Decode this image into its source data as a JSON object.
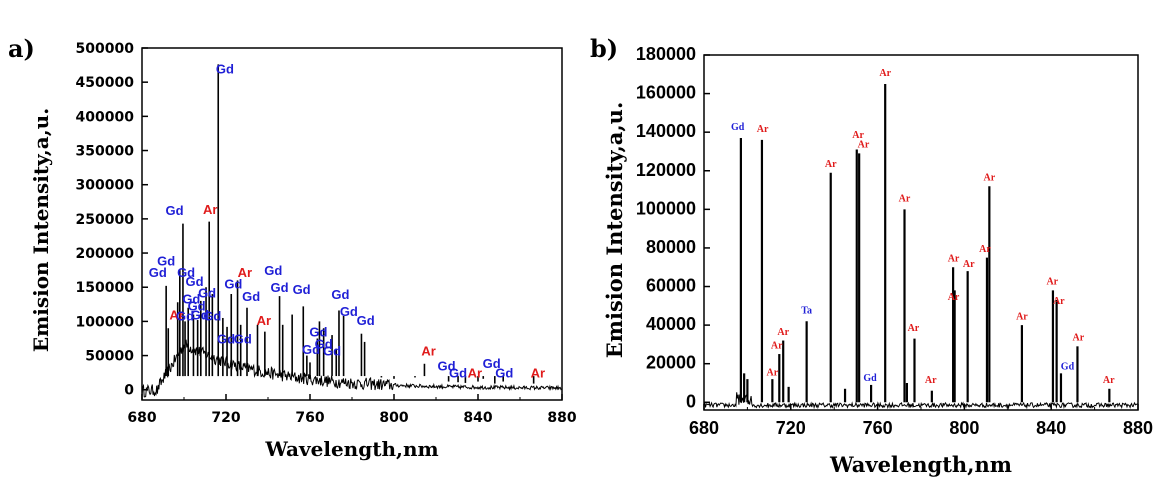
{
  "colors": {
    "gd": "#1f1fd6",
    "ar": "#e01b1b",
    "ta": "#1f1fd6",
    "trace": "#000000"
  },
  "chart_data": [
    {
      "panel": "a)",
      "type": "line",
      "xlabel": "Wavelength,nm",
      "ylabel": "Emision Intensity,a,u.",
      "xlim": [
        680,
        880
      ],
      "ylim": [
        -15000,
        500000
      ],
      "xticks": [
        680,
        720,
        760,
        800,
        840,
        880
      ],
      "yticks": [
        0,
        50000,
        100000,
        150000,
        200000,
        250000,
        300000,
        350000,
        400000,
        450000,
        500000
      ],
      "legend": "none",
      "grid": false,
      "series": [
        {
          "values": [
            {
              "x": 691.5,
              "y": 152000
            },
            {
              "x": 692.5,
              "y": 90000
            },
            {
              "x": 697.0,
              "y": 128000
            },
            {
              "x": 698.0,
              "y": 175000
            },
            {
              "x": 699.5,
              "y": 243000
            },
            {
              "x": 700.5,
              "y": 100000
            },
            {
              "x": 702.0,
              "y": 120000
            },
            {
              "x": 704.5,
              "y": 110000
            },
            {
              "x": 706.5,
              "y": 102000
            },
            {
              "x": 708.0,
              "y": 130000
            },
            {
              "x": 710.5,
              "y": 150000
            },
            {
              "x": 712.0,
              "y": 246000
            },
            {
              "x": 713.5,
              "y": 140000
            },
            {
              "x": 716.3,
              "y": 476000
            },
            {
              "x": 718.5,
              "y": 105000
            },
            {
              "x": 720.5,
              "y": 92000
            },
            {
              "x": 722.5,
              "y": 140000
            },
            {
              "x": 725.5,
              "y": 160000
            },
            {
              "x": 727.0,
              "y": 95000
            },
            {
              "x": 730.0,
              "y": 120000
            },
            {
              "x": 735.0,
              "y": 95000
            },
            {
              "x": 738.5,
              "y": 85000
            },
            {
              "x": 745.5,
              "y": 137000
            },
            {
              "x": 747.0,
              "y": 95000
            },
            {
              "x": 751.5,
              "y": 110000
            },
            {
              "x": 756.8,
              "y": 122000
            },
            {
              "x": 758.5,
              "y": 50000
            },
            {
              "x": 760.0,
              "y": 40000
            },
            {
              "x": 763.5,
              "y": 75000
            },
            {
              "x": 764.5,
              "y": 100000
            },
            {
              "x": 766.5,
              "y": 90000
            },
            {
              "x": 770.5,
              "y": 80000
            },
            {
              "x": 772.5,
              "y": 60000
            },
            {
              "x": 773.8,
              "y": 116000
            },
            {
              "x": 776.0,
              "y": 108000
            },
            {
              "x": 784.5,
              "y": 82000
            },
            {
              "x": 786.0,
              "y": 70000
            },
            {
              "x": 794.0,
              "y": 18000
            },
            {
              "x": 800.0,
              "y": 16000
            },
            {
              "x": 810.0,
              "y": 18000
            },
            {
              "x": 814.5,
              "y": 38000
            },
            {
              "x": 822.0,
              "y": 20000
            },
            {
              "x": 826.0,
              "y": 12000
            },
            {
              "x": 830.5,
              "y": 11000
            },
            {
              "x": 834.0,
              "y": 10000
            },
            {
              "x": 840.0,
              "y": 12000
            },
            {
              "x": 842.5,
              "y": 16000
            },
            {
              "x": 848.0,
              "y": 9000
            },
            {
              "x": 852.0,
              "y": 12000
            },
            {
              "x": 866.5,
              "y": 9000
            }
          ]
        }
      ],
      "annotations": [
        {
          "text": "Gd",
          "el": "gd",
          "x": 687.5,
          "y": 165000
        },
        {
          "text": "Gd",
          "el": "gd",
          "x": 691.5,
          "y": 182000
        },
        {
          "text": "Ar",
          "el": "ar",
          "x": 696.5,
          "y": 103000
        },
        {
          "text": "Gd",
          "el": "gd",
          "x": 695.5,
          "y": 256000
        },
        {
          "text": "Gd",
          "el": "gd",
          "x": 701.0,
          "y": 165000
        },
        {
          "text": "Gd",
          "el": "gd",
          "x": 705.0,
          "y": 152000
        },
        {
          "text": "Gd",
          "el": "gd",
          "x": 703.5,
          "y": 126000
        },
        {
          "text": "Gd",
          "el": "gd",
          "x": 700.5,
          "y": 101000
        },
        {
          "text": "Gd",
          "el": "gd",
          "x": 706.0,
          "y": 116000
        },
        {
          "text": "Gd",
          "el": "gd",
          "x": 707.5,
          "y": 103000
        },
        {
          "text": "Gd",
          "el": "gd",
          "x": 711.0,
          "y": 135000
        },
        {
          "text": "Gd",
          "el": "gd",
          "x": 713.5,
          "y": 101000
        },
        {
          "text": "Ar",
          "el": "ar",
          "x": 712.5,
          "y": 257000
        },
        {
          "text": "Gd",
          "el": "gd",
          "x": 719.5,
          "y": 463000
        },
        {
          "text": "Gd",
          "el": "gd",
          "x": 720.0,
          "y": 68000
        },
        {
          "text": "Gd",
          "el": "gd",
          "x": 723.5,
          "y": 148000
        },
        {
          "text": "Ar",
          "el": "ar",
          "x": 729.0,
          "y": 165000
        },
        {
          "text": "Gd",
          "el": "gd",
          "x": 728.0,
          "y": 68000
        },
        {
          "text": "Gd",
          "el": "gd",
          "x": 732.0,
          "y": 130000
        },
        {
          "text": "Ar",
          "el": "ar",
          "x": 738.0,
          "y": 95000
        },
        {
          "text": "Gd",
          "el": "gd",
          "x": 742.5,
          "y": 168000
        },
        {
          "text": "Gd",
          "el": "gd",
          "x": 745.5,
          "y": 143000
        },
        {
          "text": "Gd",
          "el": "gd",
          "x": 756.0,
          "y": 140000
        },
        {
          "text": "Gd",
          "el": "gd",
          "x": 764.0,
          "y": 78000
        },
        {
          "text": "Gd",
          "el": "gd",
          "x": 760.5,
          "y": 52000
        },
        {
          "text": "Gd",
          "el": "gd",
          "x": 766.5,
          "y": 60000
        },
        {
          "text": "Gd",
          "el": "gd",
          "x": 770.5,
          "y": 50000
        },
        {
          "text": "Gd",
          "el": "gd",
          "x": 774.5,
          "y": 133000
        },
        {
          "text": "Gd",
          "el": "gd",
          "x": 778.5,
          "y": 108000
        },
        {
          "text": "Gd",
          "el": "gd",
          "x": 786.5,
          "y": 95000
        },
        {
          "text": "Ar",
          "el": "ar",
          "x": 816.5,
          "y": 50000
        },
        {
          "text": "Gd",
          "el": "gd",
          "x": 825.0,
          "y": 28000
        },
        {
          "text": "Gd",
          "el": "gd",
          "x": 830.5,
          "y": 18000
        },
        {
          "text": "Ar",
          "el": "ar",
          "x": 838.5,
          "y": 18000
        },
        {
          "text": "Gd",
          "el": "gd",
          "x": 846.5,
          "y": 32000
        },
        {
          "text": "Gd",
          "el": "gd",
          "x": 852.5,
          "y": 18000
        },
        {
          "text": "Ar",
          "el": "ar",
          "x": 868.5,
          "y": 18000
        }
      ]
    },
    {
      "panel": "b)",
      "type": "line",
      "xlabel": "Wavelength,nm",
      "ylabel": "Emision Intensity,a,u.",
      "xlim": [
        680,
        880
      ],
      "ylim": [
        -4000,
        180000
      ],
      "xticks": [
        680,
        720,
        760,
        800,
        840,
        880
      ],
      "yticks": [
        0,
        20000,
        40000,
        60000,
        80000,
        100000,
        120000,
        140000,
        160000,
        180000
      ],
      "legend": "none",
      "grid": false,
      "series": [
        {
          "values": [
            {
              "x": 697.0,
              "y": 137000
            },
            {
              "x": 698.5,
              "y": 15000
            },
            {
              "x": 700.0,
              "y": 12000
            },
            {
              "x": 706.7,
              "y": 136000
            },
            {
              "x": 711.5,
              "y": 12000
            },
            {
              "x": 714.7,
              "y": 25000
            },
            {
              "x": 716.5,
              "y": 32000
            },
            {
              "x": 719.0,
              "y": 8000
            },
            {
              "x": 727.3,
              "y": 42000
            },
            {
              "x": 738.4,
              "y": 119000
            },
            {
              "x": 745.0,
              "y": 7000
            },
            {
              "x": 750.4,
              "y": 131000
            },
            {
              "x": 751.5,
              "y": 129000
            },
            {
              "x": 757.0,
              "y": 9000
            },
            {
              "x": 763.5,
              "y": 165000
            },
            {
              "x": 772.4,
              "y": 100000
            },
            {
              "x": 773.5,
              "y": 10000
            },
            {
              "x": 777.0,
              "y": 33000
            },
            {
              "x": 785.0,
              "y": 6000
            },
            {
              "x": 794.8,
              "y": 70000
            },
            {
              "x": 795.5,
              "y": 58000
            },
            {
              "x": 801.5,
              "y": 68000
            },
            {
              "x": 810.4,
              "y": 75000
            },
            {
              "x": 811.5,
              "y": 112000
            },
            {
              "x": 826.5,
              "y": 40000
            },
            {
              "x": 840.8,
              "y": 58000
            },
            {
              "x": 842.5,
              "y": 53000
            },
            {
              "x": 844.5,
              "y": 15000
            },
            {
              "x": 852.1,
              "y": 29000
            },
            {
              "x": 866.8,
              "y": 7000
            }
          ]
        }
      ],
      "annotations": [
        {
          "text": "Gd",
          "el": "gd",
          "x": 695.5,
          "y": 141000
        },
        {
          "text": "Ar",
          "el": "ar",
          "x": 707.0,
          "y": 140000
        },
        {
          "text": "Ar",
          "el": "ar",
          "x": 711.5,
          "y": 14000
        },
        {
          "text": "Ar",
          "el": "ar",
          "x": 713.5,
          "y": 28000
        },
        {
          "text": "Ar",
          "el": "ar",
          "x": 716.5,
          "y": 35000
        },
        {
          "text": "Ta",
          "el": "ta",
          "x": 727.3,
          "y": 46000
        },
        {
          "text": "Ar",
          "el": "ar",
          "x": 738.4,
          "y": 122000
        },
        {
          "text": "Ar",
          "el": "ar",
          "x": 751.0,
          "y": 137000
        },
        {
          "text": "Ar",
          "el": "ar",
          "x": 753.5,
          "y": 132000
        },
        {
          "text": "Gd",
          "el": "gd",
          "x": 756.5,
          "y": 11000
        },
        {
          "text": "Ar",
          "el": "ar",
          "x": 763.5,
          "y": 169000
        },
        {
          "text": "Ar",
          "el": "ar",
          "x": 772.4,
          "y": 104000
        },
        {
          "text": "Ar",
          "el": "ar",
          "x": 776.5,
          "y": 37000
        },
        {
          "text": "Ar",
          "el": "ar",
          "x": 784.5,
          "y": 10000
        },
        {
          "text": "Ar",
          "el": "ar",
          "x": 795.0,
          "y": 73000
        },
        {
          "text": "Ar",
          "el": "ar",
          "x": 795.0,
          "y": 53000
        },
        {
          "text": "Ar",
          "el": "ar",
          "x": 802.0,
          "y": 70000
        },
        {
          "text": "Ar",
          "el": "ar",
          "x": 809.5,
          "y": 78000
        },
        {
          "text": "Ar",
          "el": "ar",
          "x": 811.5,
          "y": 115000
        },
        {
          "text": "Ar",
          "el": "ar",
          "x": 826.5,
          "y": 43000
        },
        {
          "text": "Ar",
          "el": "ar",
          "x": 840.5,
          "y": 61000
        },
        {
          "text": "Ar",
          "el": "ar",
          "x": 843.5,
          "y": 51000
        },
        {
          "text": "Gd",
          "el": "gd",
          "x": 847.5,
          "y": 17000
        },
        {
          "text": "Ar",
          "el": "ar",
          "x": 852.5,
          "y": 32000
        },
        {
          "text": "Ar",
          "el": "ar",
          "x": 866.5,
          "y": 10000
        }
      ]
    }
  ]
}
